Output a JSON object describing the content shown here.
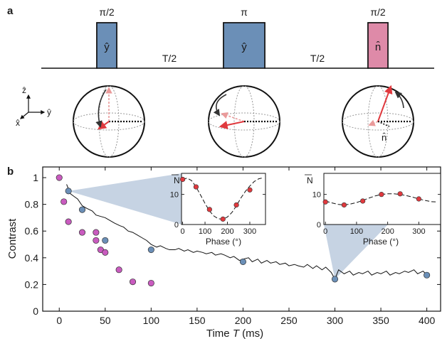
{
  "panel_labels": {
    "a": "a",
    "b": "b"
  },
  "pulse_sequence": {
    "pulses": [
      {
        "angle": "π/2",
        "axis": "ŷ",
        "color": "#6b8fb7"
      },
      {
        "angle": "π",
        "axis": "ŷ",
        "color": "#6b8fb7"
      },
      {
        "angle": "π/2",
        "axis": "n̂",
        "color": "#de8aa8"
      }
    ],
    "gaps": [
      "T/2",
      "T/2"
    ]
  },
  "axes_glyph": {
    "z": "ẑ",
    "y": "ŷ",
    "x": "x̂"
  },
  "spheres": {
    "third_label": "n̂"
  },
  "colors": {
    "blue": "#6b8fb7",
    "magenta": "#c95bbf",
    "red": "#e0393e",
    "pink_dashed": "#ea9a9a",
    "shade": "#c6d3e3"
  },
  "chart_data": [
    {
      "type": "scatter",
      "xlabel_pre": "Time ",
      "xlabel_var": "T",
      "xlabel_post": " (ms)",
      "ylabel": "Contrast",
      "xlim": [
        -18,
        415
      ],
      "ylim": [
        0,
        1.08
      ],
      "xticks": [
        0,
        50,
        100,
        150,
        200,
        250,
        300,
        350,
        400
      ],
      "yticks": [
        0,
        0.2,
        0.4,
        0.6,
        0.8,
        1
      ],
      "series": [
        {
          "color": "#c95bbf",
          "points": [
            [
              0,
              1.0
            ],
            [
              5,
              0.82
            ],
            [
              10,
              0.67
            ],
            [
              25,
              0.59
            ],
            [
              40,
              0.59
            ],
            [
              40,
              0.53
            ],
            [
              45,
              0.46
            ],
            [
              50,
              0.44
            ],
            [
              65,
              0.31
            ],
            [
              80,
              0.22
            ],
            [
              100,
              0.21
            ]
          ]
        },
        {
          "color": "#6b8fb7",
          "points": [
            [
              10,
              0.9
            ],
            [
              25,
              0.76
            ],
            [
              50,
              0.53
            ],
            [
              100,
              0.46
            ],
            [
              200,
              0.37
            ],
            [
              300,
              0.24
            ],
            [
              400,
              0.27
            ]
          ]
        }
      ],
      "trace": [
        [
          8,
          0.95
        ],
        [
          12,
          0.88
        ],
        [
          16,
          0.86
        ],
        [
          20,
          0.84
        ],
        [
          25,
          0.79
        ],
        [
          30,
          0.77
        ],
        [
          36,
          0.75
        ],
        [
          40,
          0.72
        ],
        [
          45,
          0.71
        ],
        [
          50,
          0.7
        ],
        [
          55,
          0.68
        ],
        [
          60,
          0.66
        ],
        [
          66,
          0.64
        ],
        [
          70,
          0.63
        ],
        [
          75,
          0.6
        ],
        [
          80,
          0.59
        ],
        [
          85,
          0.57
        ],
        [
          90,
          0.55
        ],
        [
          95,
          0.53
        ],
        [
          100,
          0.5
        ],
        [
          106,
          0.48
        ],
        [
          110,
          0.49
        ],
        [
          116,
          0.47
        ],
        [
          120,
          0.46
        ],
        [
          126,
          0.46
        ],
        [
          130,
          0.47
        ],
        [
          136,
          0.45
        ],
        [
          140,
          0.46
        ],
        [
          146,
          0.44
        ],
        [
          150,
          0.45
        ],
        [
          156,
          0.44
        ],
        [
          160,
          0.43
        ],
        [
          166,
          0.44
        ],
        [
          170,
          0.42
        ],
        [
          176,
          0.43
        ],
        [
          180,
          0.42
        ],
        [
          186,
          0.4
        ],
        [
          190,
          0.41
        ],
        [
          196,
          0.38
        ],
        [
          200,
          0.39
        ],
        [
          206,
          0.4
        ],
        [
          210,
          0.37
        ],
        [
          216,
          0.39
        ],
        [
          220,
          0.36
        ],
        [
          226,
          0.38
        ],
        [
          230,
          0.36
        ],
        [
          236,
          0.37
        ],
        [
          240,
          0.35
        ],
        [
          246,
          0.36
        ],
        [
          250,
          0.34
        ],
        [
          256,
          0.35
        ],
        [
          260,
          0.34
        ],
        [
          266,
          0.33
        ],
        [
          270,
          0.35
        ],
        [
          276,
          0.32
        ],
        [
          280,
          0.34
        ],
        [
          286,
          0.31
        ],
        [
          290,
          0.33
        ],
        [
          296,
          0.29
        ],
        [
          300,
          0.24
        ],
        [
          304,
          0.31
        ],
        [
          310,
          0.28
        ],
        [
          316,
          0.3
        ],
        [
          320,
          0.27
        ],
        [
          326,
          0.29
        ],
        [
          330,
          0.28
        ],
        [
          336,
          0.3
        ],
        [
          340,
          0.27
        ],
        [
          346,
          0.29
        ],
        [
          350,
          0.28
        ],
        [
          356,
          0.3
        ],
        [
          360,
          0.27
        ],
        [
          366,
          0.29
        ],
        [
          370,
          0.28
        ],
        [
          376,
          0.3
        ],
        [
          380,
          0.29
        ],
        [
          386,
          0.31
        ],
        [
          390,
          0.28
        ],
        [
          396,
          0.3
        ],
        [
          400,
          0.27
        ]
      ]
    },
    {
      "type": "scatter",
      "inset": "left",
      "ylabel": "N",
      "xlabel": "Phase (°)",
      "xlim": [
        -5,
        370
      ],
      "ylim": [
        0,
        17
      ],
      "xticks": [
        0,
        100,
        200,
        300
      ],
      "yticks": [
        0,
        10
      ],
      "points": [
        [
          0,
          15
        ],
        [
          60,
          12.5
        ],
        [
          120,
          5
        ],
        [
          180,
          1.8
        ],
        [
          240,
          6.5
        ],
        [
          300,
          11.5
        ]
      ],
      "fit": [
        [
          0,
          15
        ],
        [
          20,
          15.4
        ],
        [
          40,
          14.6
        ],
        [
          60,
          12.5
        ],
        [
          80,
          9.8
        ],
        [
          100,
          7
        ],
        [
          120,
          4.5
        ],
        [
          140,
          2.8
        ],
        [
          160,
          1.9
        ],
        [
          180,
          1.8
        ],
        [
          200,
          2.5
        ],
        [
          220,
          4
        ],
        [
          240,
          6.2
        ],
        [
          260,
          8.8
        ],
        [
          280,
          11
        ],
        [
          300,
          12.8
        ],
        [
          320,
          14.3
        ],
        [
          340,
          15.2
        ],
        [
          360,
          15.5
        ]
      ]
    },
    {
      "type": "scatter",
      "inset": "right",
      "ylabel": "N",
      "xlabel": "Phase (°)",
      "xlim": [
        -5,
        370
      ],
      "ylim": [
        0,
        17
      ],
      "xticks": [
        0,
        100,
        200,
        300
      ],
      "yticks": [
        0,
        10
      ],
      "points": [
        [
          0,
          7.5
        ],
        [
          60,
          6.5
        ],
        [
          120,
          7.8
        ],
        [
          180,
          10
        ],
        [
          240,
          10.2
        ],
        [
          300,
          8.5
        ]
      ],
      "fit": [
        [
          0,
          7.8
        ],
        [
          20,
          7.2
        ],
        [
          40,
          6.7
        ],
        [
          60,
          6.5
        ],
        [
          80,
          6.8
        ],
        [
          100,
          7.3
        ],
        [
          120,
          8
        ],
        [
          140,
          8.8
        ],
        [
          160,
          9.5
        ],
        [
          180,
          10
        ],
        [
          200,
          10.2
        ],
        [
          220,
          10.2
        ],
        [
          240,
          10
        ],
        [
          260,
          9.6
        ],
        [
          280,
          9.1
        ],
        [
          300,
          8.5
        ],
        [
          320,
          8
        ],
        [
          340,
          7.6
        ],
        [
          360,
          7.5
        ]
      ]
    }
  ]
}
